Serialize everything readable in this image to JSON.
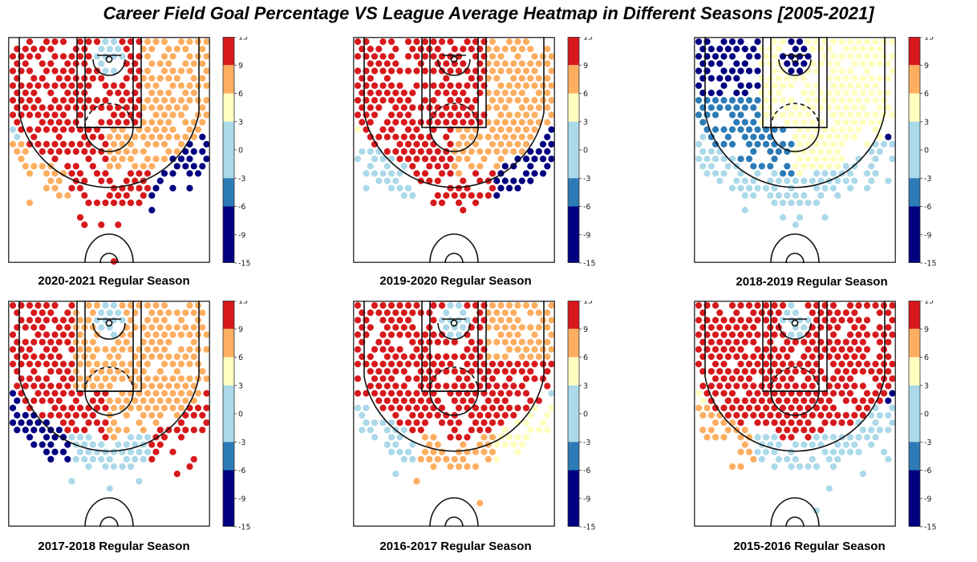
{
  "title": "Career Field Goal Percentage VS League Average Heatmap in Different Seasons [2005-2021]",
  "colorbar": {
    "ticks": [
      15,
      9,
      6,
      3,
      0,
      -3,
      -6,
      -9,
      -15
    ],
    "bands": [
      {
        "from": 9,
        "to": 15,
        "color": "#d7191c"
      },
      {
        "from": 6,
        "to": 9,
        "color": "#fdae61"
      },
      {
        "from": 3,
        "to": 6,
        "color": "#ffffbf"
      },
      {
        "from": -3,
        "to": 3,
        "color": "#abd9e9"
      },
      {
        "from": -6,
        "to": -3,
        "color": "#2c7bb6"
      },
      {
        "from": -15,
        "to": -6,
        "color": "#000080"
      }
    ]
  },
  "chart_data": [
    {
      "type": "heatmap",
      "title": "2020-2021 Regular Season",
      "zones": {
        "paint": 12,
        "left_mid": 10,
        "right_mid": 7,
        "left_corner": 0,
        "right_corner": -10,
        "left_wing_three": 7,
        "top_three": 12,
        "right_wing_three": -12,
        "upper_left": 10,
        "upper_right": 7,
        "rim": 1
      }
    },
    {
      "type": "heatmap",
      "title": "2019-2020 Regular Season",
      "zones": {
        "paint": 12,
        "left_mid": 12,
        "right_mid": 8,
        "left_corner": 4,
        "right_corner": -10,
        "left_wing_three": 1,
        "top_three": 12,
        "right_wing_three": -12,
        "upper_left": 12,
        "upper_right": 8,
        "rim": 12
      }
    },
    {
      "type": "heatmap",
      "title": "2018-2019 Regular Season",
      "zones": {
        "paint": 4,
        "left_mid": -5,
        "right_mid": 4,
        "left_corner": 1,
        "right_corner": -12,
        "left_wing_three": 1,
        "top_three": 1,
        "right_wing_three": 1,
        "upper_left": -12,
        "upper_right": 4,
        "rim": -12
      }
    },
    {
      "type": "heatmap",
      "title": "2017-2018 Regular Season",
      "zones": {
        "paint": 7,
        "left_mid": 12,
        "right_mid": 7,
        "left_corner": -12,
        "right_corner": 12,
        "left_wing_three": -12,
        "top_three": 1,
        "right_wing_three": 12,
        "upper_left": 12,
        "upper_right": 7,
        "rim": 1
      }
    },
    {
      "type": "heatmap",
      "title": "2016-2017 Regular Season",
      "zones": {
        "paint": 12,
        "left_mid": 12,
        "right_mid": 12,
        "left_corner": 12,
        "right_corner": 1,
        "left_wing_three": 1,
        "top_three": 7,
        "right_wing_three": 4,
        "upper_left": 12,
        "upper_right": 7,
        "rim": 1
      }
    },
    {
      "type": "heatmap",
      "title": "2015-2016 Regular Season",
      "zones": {
        "paint": 12,
        "left_mid": 12,
        "right_mid": 12,
        "left_corner": 4,
        "right_corner": -12,
        "left_wing_three": 7,
        "top_three": 1,
        "right_wing_three": 1,
        "upper_left": 12,
        "upper_right": 12,
        "rim": 1
      }
    }
  ]
}
